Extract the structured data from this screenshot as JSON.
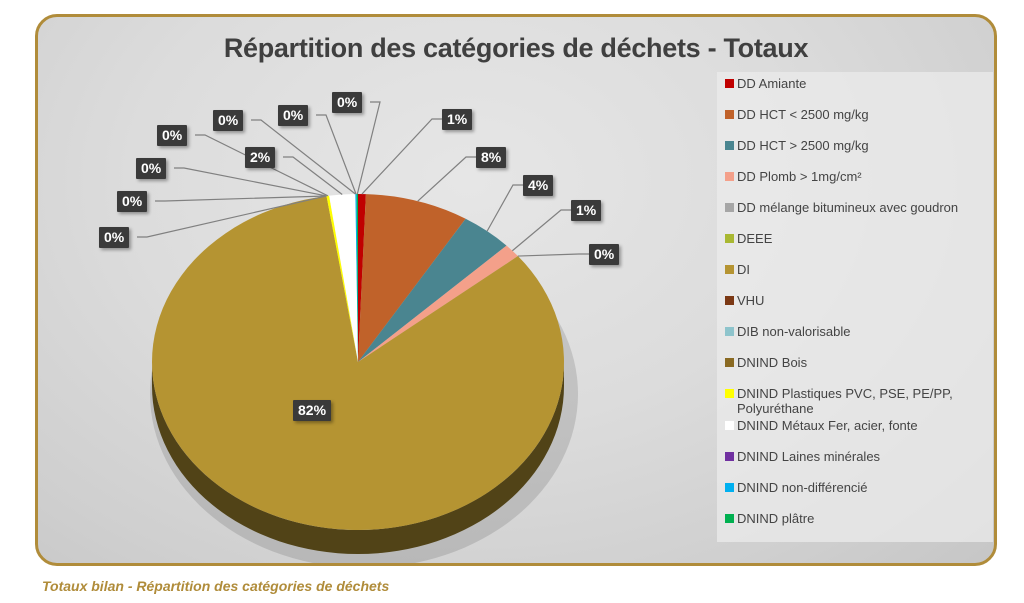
{
  "chart_data": {
    "type": "pie",
    "title": "Répartition des catégories de déchets - Totaux",
    "legend_position": "right",
    "categories": [
      "DD Amiante",
      "DD HCT < 2500 mg/kg",
      "DD HCT > 2500 mg/kg",
      "DD Plomb > 1mg/cm²",
      "DD mélange bitumineux avec goudron",
      "DEEE",
      "DI",
      "VHU",
      "DIB non-valorisable",
      "DNIND Bois",
      "DNIND Plastiques PVC, PSE, PE/PP, Polyuréthane",
      "DNIND Métaux Fer, acier, fonte",
      "DNIND Laines minérales",
      "DNIND non-différencié",
      "DNIND plâtre"
    ],
    "values": [
      0.6,
      8,
      4,
      1.3,
      0,
      0,
      82,
      0,
      0,
      0,
      0.2,
      2,
      0,
      0.1,
      0.1
    ],
    "data_labels": [
      "1%",
      "8%",
      "4%",
      "1%",
      "0%",
      "0%",
      "82%",
      "0%",
      "0%",
      "0%",
      "0%",
      "2%",
      "0%",
      "0%",
      "0%"
    ],
    "colors": [
      "#c00000",
      "#c0622a",
      "#4a8590",
      "#f4a08a",
      "#a6a6a6",
      "#a9b832",
      "#b59432",
      "#7b3814",
      "#8ec4cc",
      "#8a6a22",
      "#ffff00",
      "#ffffff",
      "#7030a0",
      "#00b0f0",
      "#00b050"
    ]
  },
  "caption": "Totaux bilan - Répartition des catégories de déchets"
}
